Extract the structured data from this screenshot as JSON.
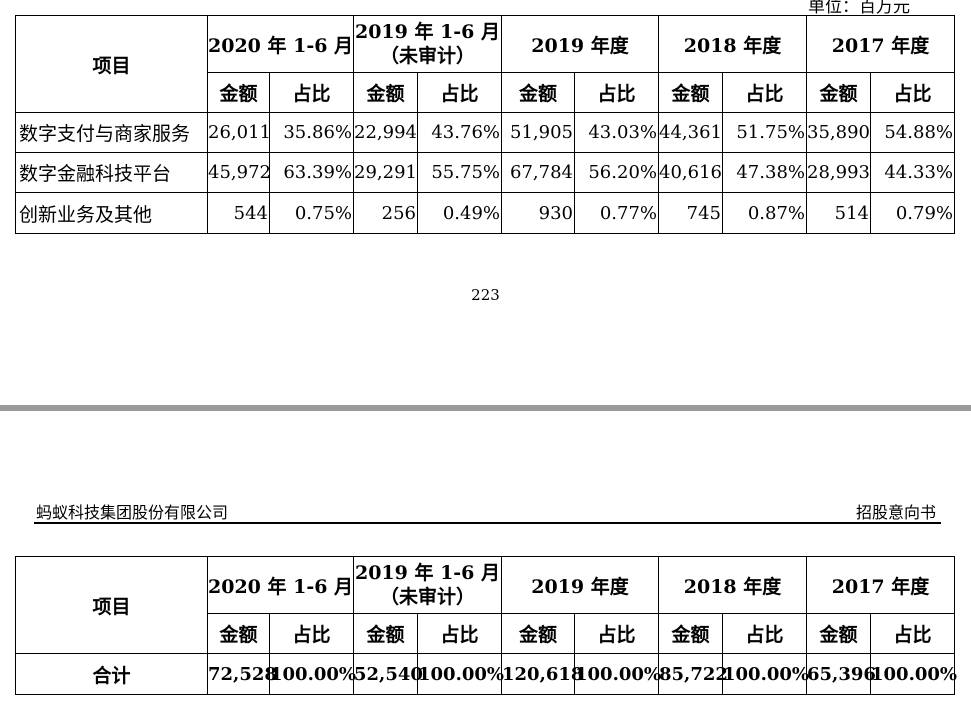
{
  "unit_text": "单位：百万元",
  "page_number": "223",
  "header": {
    "company": "蚂蚁科技集团股份有限公司",
    "doc_type": "招股意向书"
  },
  "table": {
    "item_header": "项目",
    "periods": [
      {
        "line1": "2020 年 1-6 月",
        "line2": ""
      },
      {
        "line1": "2019 年 1-6 月",
        "line2": "（未审计）"
      },
      {
        "line1": "2019 年度",
        "line2": ""
      },
      {
        "line1": "2018 年度",
        "line2": ""
      },
      {
        "line1": "2017 年度",
        "line2": ""
      }
    ],
    "sub_amount": "金额",
    "sub_ratio": "占比",
    "rows": [
      {
        "label": "数字支付与商家服务",
        "values": [
          "26,011",
          "35.86%",
          "22,994",
          "43.76%",
          "51,905",
          "43.03%",
          "44,361",
          "51.75%",
          "35,890",
          "54.88%"
        ]
      },
      {
        "label": "数字金融科技平台",
        "values": [
          "45,972",
          "63.39%",
          "29,291",
          "55.75%",
          "67,784",
          "56.20%",
          "40,616",
          "47.38%",
          "28,993",
          "44.33%"
        ]
      },
      {
        "label": "创新业务及其他",
        "values": [
          "544",
          "0.75%",
          "256",
          "0.49%",
          "930",
          "0.77%",
          "745",
          "0.87%",
          "514",
          "0.79%"
        ]
      }
    ],
    "total": {
      "label": "合计",
      "values": [
        "72,528",
        "100.00%",
        "52,540",
        "100.00%",
        "120,618",
        "100.00%",
        "85,722",
        "100.00%",
        "65,396",
        "100.00%"
      ]
    }
  }
}
